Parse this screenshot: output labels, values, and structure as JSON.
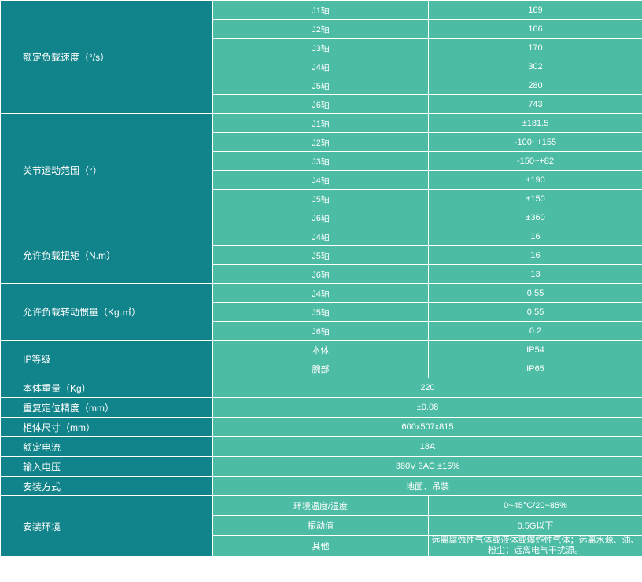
{
  "table": {
    "rated_speed": {
      "label": "额定负载速度（°/s）",
      "rows": [
        {
          "axis": "J1轴",
          "value": "169"
        },
        {
          "axis": "J2轴",
          "value": "166"
        },
        {
          "axis": "J3轴",
          "value": "170"
        },
        {
          "axis": "J4轴",
          "value": "302"
        },
        {
          "axis": "J5轴",
          "value": "280"
        },
        {
          "axis": "J6轴",
          "value": "743"
        }
      ]
    },
    "joint_range": {
      "label": "关节运动范围（°）",
      "rows": [
        {
          "axis": "J1轴",
          "value": "±181.5"
        },
        {
          "axis": "J2轴",
          "value": "-100~+155"
        },
        {
          "axis": "J3轴",
          "value": "-150~+82"
        },
        {
          "axis": "J4轴",
          "value": "±190"
        },
        {
          "axis": "J5轴",
          "value": "±150"
        },
        {
          "axis": "J6轴",
          "value": "±360"
        }
      ]
    },
    "torque": {
      "label": "允许负载扭矩（N.m）",
      "rows": [
        {
          "axis": "J4轴",
          "value": "16"
        },
        {
          "axis": "J5轴",
          "value": "16"
        },
        {
          "axis": "J6轴",
          "value": "13"
        }
      ]
    },
    "inertia": {
      "label": "允许负载转动惯量（Kg.㎡）",
      "rows": [
        {
          "axis": "J4轴",
          "value": "0.55"
        },
        {
          "axis": "J5轴",
          "value": "0.55"
        },
        {
          "axis": "J6轴",
          "value": "0.2"
        }
      ]
    },
    "ip": {
      "label": "IP等级",
      "rows": [
        {
          "axis": "本体",
          "value": "IP54"
        },
        {
          "axis": "腕部",
          "value": "IP65"
        }
      ]
    },
    "weight": {
      "label": "本体重量（Kg）",
      "value": "220"
    },
    "repeatability": {
      "label": "重复定位精度（mm）",
      "value": "±0.08"
    },
    "cabinet": {
      "label": "柜体尺寸（mm）",
      "value": "600x507x815"
    },
    "current": {
      "label": "额定电流",
      "value": "18A"
    },
    "voltage": {
      "label": "输入电压",
      "value": "380V 3AC ±15%"
    },
    "mounting": {
      "label": "安装方式",
      "value": "地面、吊装"
    },
    "environment": {
      "label": "安装环境",
      "rows": [
        {
          "axis": "环境温度/湿度",
          "value": "0~45°C/20~85%"
        },
        {
          "axis": "振动值",
          "value": "0.5G以下"
        },
        {
          "axis": "其他",
          "value": "远离腐蚀性气体或液体或爆炸性气体；远离水源、油、粉尘；远离电气干扰源。"
        }
      ]
    }
  },
  "colors": {
    "param_bg": "#11838a",
    "value_bg": "#4dbca4",
    "text": "#ffffff"
  }
}
